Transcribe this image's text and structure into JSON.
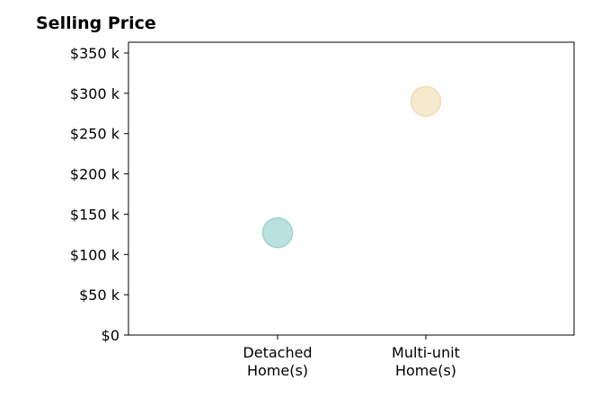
{
  "chart_data": {
    "type": "scatter",
    "title": "Selling Price",
    "categories": [
      "Detached\nHome(s)",
      "Multi-unit\nHome(s)"
    ],
    "values": [
      127000,
      290000
    ],
    "ylim": [
      0,
      360000
    ],
    "yticks": [
      0,
      50000,
      100000,
      150000,
      200000,
      250000,
      300000,
      350000
    ],
    "ytick_labels": [
      "$0",
      "$50 k",
      "$100 k",
      "$150 k",
      "$200 k",
      "$250 k",
      "$300 k",
      "$350 k"
    ],
    "point_colors": [
      "#b3dedb",
      "#f6e7c9"
    ],
    "point_stroke_colors": [
      "#9fd2ce",
      "#efdcb6"
    ],
    "xlabel": "",
    "ylabel": "",
    "grid": false,
    "legend": "none"
  }
}
